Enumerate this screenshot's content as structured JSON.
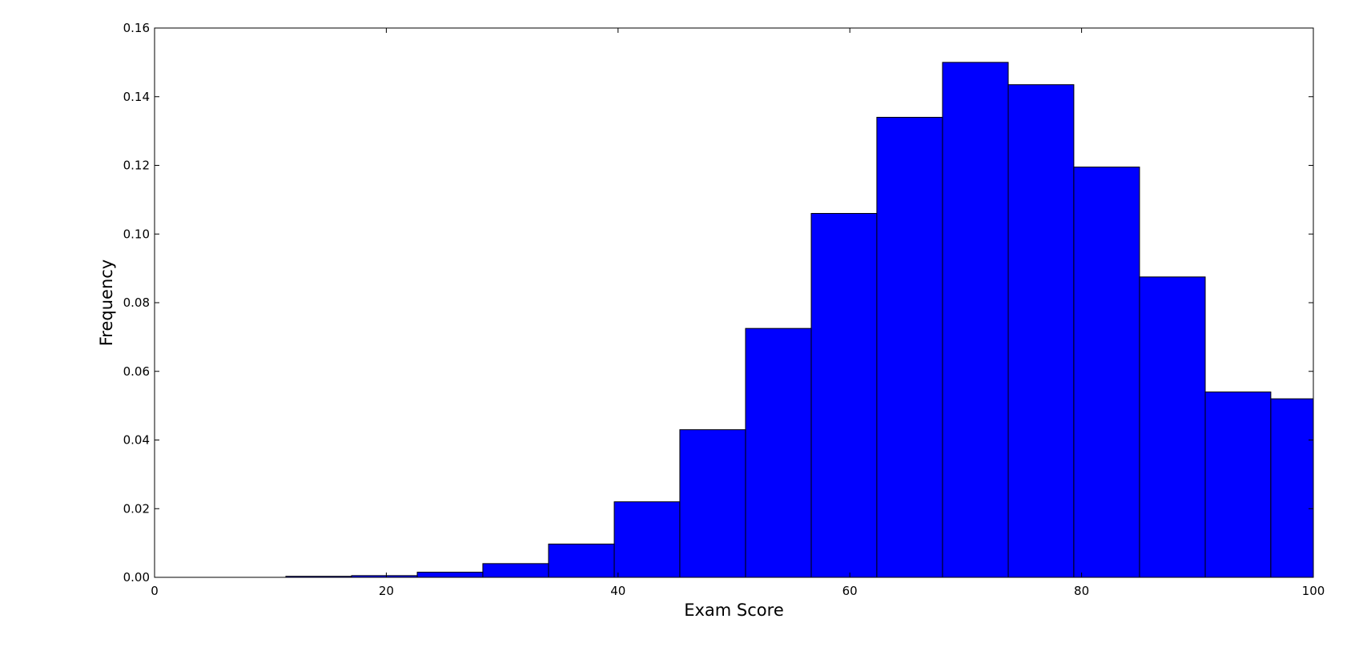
{
  "chart_data": {
    "type": "bar",
    "title": "",
    "xlabel": "Exam Score",
    "ylabel": "Frequency",
    "xlim": [
      0,
      100
    ],
    "ylim": [
      0,
      0.16
    ],
    "xticks": [
      "0",
      "20",
      "40",
      "60",
      "80",
      "100"
    ],
    "yticks": [
      "0.00",
      "0.02",
      "0.04",
      "0.06",
      "0.08",
      "0.10",
      "0.12",
      "0.14",
      "0.16"
    ],
    "grid": false,
    "bar_color": "#0000ff",
    "edge_color": "#000000",
    "bins": [
      [
        0.0,
        5.67
      ],
      [
        5.67,
        11.33
      ],
      [
        11.33,
        17.0
      ],
      [
        17.0,
        22.67
      ],
      [
        22.67,
        28.33
      ],
      [
        28.33,
        34.0
      ],
      [
        34.0,
        39.67
      ],
      [
        39.67,
        45.33
      ],
      [
        45.33,
        51.0
      ],
      [
        51.0,
        56.67
      ],
      [
        56.67,
        62.33
      ],
      [
        62.33,
        68.0
      ],
      [
        68.0,
        73.67
      ],
      [
        73.67,
        79.33
      ],
      [
        79.33,
        85.0
      ],
      [
        85.0,
        90.67
      ],
      [
        90.67,
        96.33
      ],
      [
        96.33,
        100.0
      ]
    ],
    "values": [
      0.0,
      0.0,
      0.0003,
      0.0005,
      0.0015,
      0.004,
      0.0097,
      0.022,
      0.043,
      0.0725,
      0.106,
      0.134,
      0.15,
      0.1435,
      0.1195,
      0.0875,
      0.054,
      0.052
    ]
  }
}
